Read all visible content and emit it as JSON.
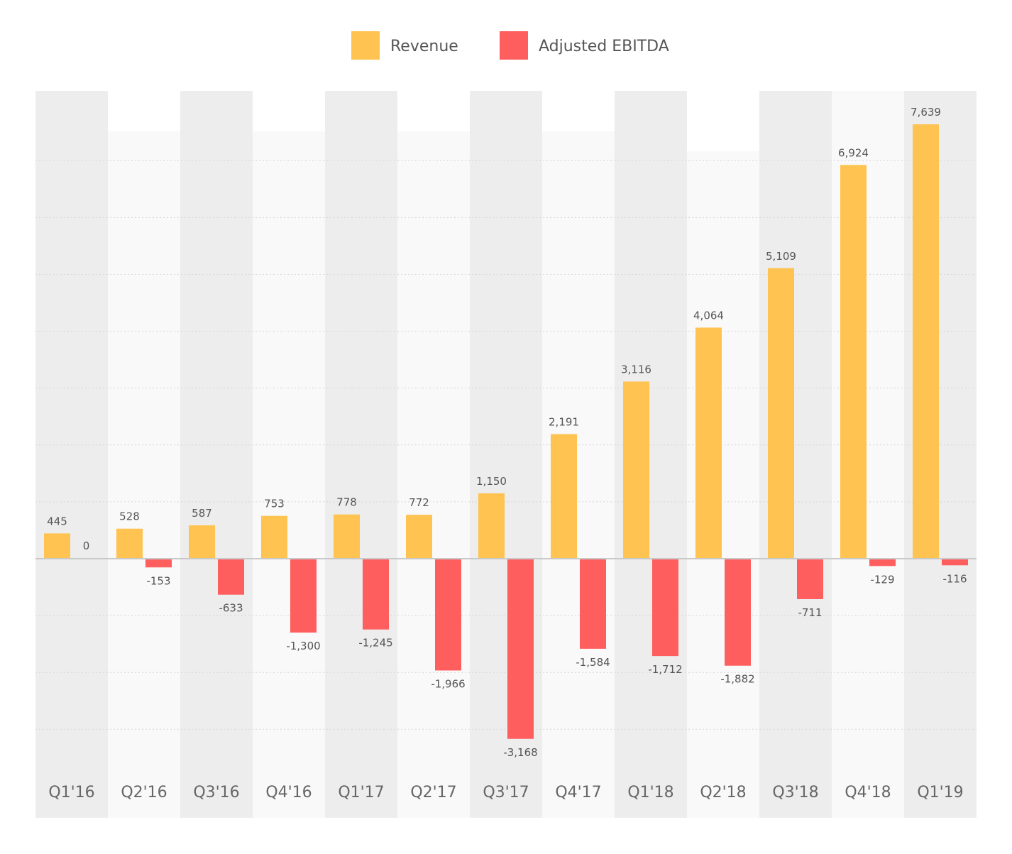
{
  "colors": {
    "revenue": "#FEC350",
    "ebitda": "#FE5E5E",
    "band_dark": "#EDEDED",
    "band_light": "#F9F9F9",
    "grid": "#D6D6D6",
    "zero_line": "#C9C9C9",
    "label_text": "#555555"
  },
  "legend": {
    "items": [
      {
        "label": "Revenue",
        "color": "#FEC350"
      },
      {
        "label": "Adjusted EBITDA",
        "color": "#FE5E5E"
      }
    ]
  },
  "chart_data": {
    "type": "bar",
    "categories": [
      "Q1'16",
      "Q2'16",
      "Q3'16",
      "Q4'16",
      "Q1'17",
      "Q2'17",
      "Q3'17",
      "Q4'17",
      "Q1'18",
      "Q2'18",
      "Q3'18",
      "Q4'18",
      "Q1'19"
    ],
    "series": [
      {
        "name": "Revenue",
        "values": [
          445,
          528,
          587,
          753,
          778,
          772,
          1150,
          2191,
          3116,
          4064,
          5109,
          6924,
          7639
        ],
        "labels": [
          "445",
          "528",
          "587",
          "753",
          "778",
          "772",
          "1,150",
          "2,191",
          "3,116",
          "4,064",
          "5,109",
          "6,924",
          "7,639"
        ]
      },
      {
        "name": "Adjusted EBITDA",
        "values": [
          0,
          -153,
          -633,
          -1300,
          -1245,
          -1966,
          -3168,
          -1584,
          -1712,
          -1882,
          -711,
          -129,
          -116
        ],
        "labels": [
          "0",
          "-153",
          "-633",
          "-1,300",
          "-1,245",
          "-1,966",
          "-3,168",
          "-1,584",
          "-1,712",
          "-1,882",
          "-711",
          "-129",
          "-116"
        ]
      }
    ],
    "ylim": [
      -3500,
      8000
    ],
    "grid": true,
    "legend_position": "top-center"
  }
}
